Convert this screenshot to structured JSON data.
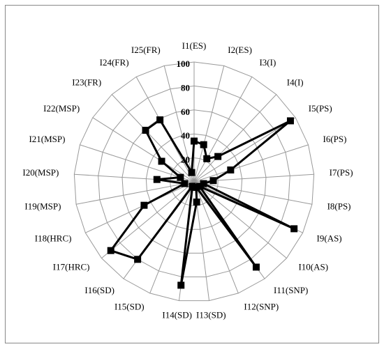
{
  "chart_data": {
    "type": "radar",
    "categories": [
      "I1(ES)",
      "I2(ES)",
      "I3(I)",
      "I4(I)",
      "I5(PS)",
      "I6(PS)",
      "I7(PS)",
      "I8(PS)",
      "I9(AS)",
      "I10(AS)",
      "I11(SNP)",
      "I12(SNP)",
      "I13(SD)",
      "I14(SD)",
      "I15(SD)",
      "I16(SD)",
      "I17(HRC)",
      "I18(HRC)",
      "I19(MSP)",
      "I20(MSP)",
      "I21(MSP)",
      "I22(MSP)",
      "I23(FR)",
      "I24(FR)",
      "I25(FR)"
    ],
    "values": [
      34,
      32,
      22,
      29,
      95,
      32,
      16,
      8,
      92,
      6,
      88,
      5,
      17,
      87,
      4,
      80,
      90,
      46,
      8,
      31,
      12,
      32,
      59,
      59,
      8
    ],
    "color": "#000000",
    "ylim": [
      0,
      100
    ],
    "yticks": [
      20,
      40,
      60,
      80,
      100
    ],
    "grid": true
  }
}
